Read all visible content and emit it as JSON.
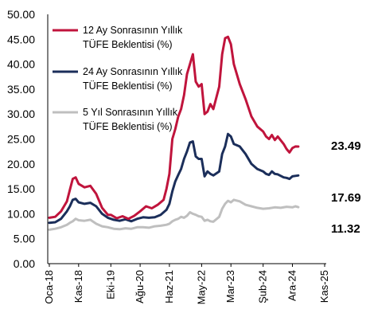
{
  "chart_data": {
    "type": "line",
    "ylim": [
      0,
      50
    ],
    "y_ticks": [
      "0.00",
      "5.00",
      "10.00",
      "15.00",
      "20.00",
      "25.00",
      "30.00",
      "35.00",
      "40.00",
      "45.00",
      "50.00"
    ],
    "x_tick_labels": [
      "Oca-18",
      "Kas-18",
      "Eki-19",
      "Ağu-20",
      "Haz-21",
      "May-22",
      "Mar-23",
      "Şub-24",
      "Ara-24",
      "Kas-25"
    ],
    "x_tick_month_index": [
      0,
      10,
      21,
      31,
      41,
      52,
      62,
      73,
      83,
      94
    ],
    "grid": false,
    "legend_position": "top-left",
    "series": [
      {
        "name": "12 Ay Sonrasının Yıllık TÜFE Beklentisi (%)",
        "color": "#c0143c",
        "end_label": "23.49",
        "points": [
          [
            0,
            9.2
          ],
          [
            2,
            9.4
          ],
          [
            4,
            10.5
          ],
          [
            6,
            12.5
          ],
          [
            7,
            14.8
          ],
          [
            8,
            17.0
          ],
          [
            9,
            17.3
          ],
          [
            10,
            16.0
          ],
          [
            12,
            15.3
          ],
          [
            14,
            15.6
          ],
          [
            16,
            14.0
          ],
          [
            18,
            11.2
          ],
          [
            20,
            9.8
          ],
          [
            21,
            9.8
          ],
          [
            23,
            9.1
          ],
          [
            25,
            9.5
          ],
          [
            27,
            9.0
          ],
          [
            29,
            9.6
          ],
          [
            31,
            10.5
          ],
          [
            33,
            11.5
          ],
          [
            35,
            11.1
          ],
          [
            37,
            11.8
          ],
          [
            39,
            12.8
          ],
          [
            40,
            15.0
          ],
          [
            41,
            18.0
          ],
          [
            42,
            25.0
          ],
          [
            43,
            27.0
          ],
          [
            44,
            29.5
          ],
          [
            45,
            31.0
          ],
          [
            46,
            33.8
          ],
          [
            47,
            38.0
          ],
          [
            48,
            40.0
          ],
          [
            49,
            42.0
          ],
          [
            50,
            36.5
          ],
          [
            51,
            35.5
          ],
          [
            52,
            36.0
          ],
          [
            53,
            30.0
          ],
          [
            54,
            30.5
          ],
          [
            55,
            32.0
          ],
          [
            56,
            31.0
          ],
          [
            58,
            35.5
          ],
          [
            59,
            42.0
          ],
          [
            60,
            45.2
          ],
          [
            61,
            45.5
          ],
          [
            62,
            44.0
          ],
          [
            63,
            40.0
          ],
          [
            65,
            36.0
          ],
          [
            67,
            33.0
          ],
          [
            69,
            29.5
          ],
          [
            71,
            27.5
          ],
          [
            73,
            26.5
          ],
          [
            74,
            25.5
          ],
          [
            75,
            25.0
          ],
          [
            76,
            25.8
          ],
          [
            77,
            24.8
          ],
          [
            78,
            25.5
          ],
          [
            80,
            24.0
          ],
          [
            81,
            23.0
          ],
          [
            82,
            22.3
          ],
          [
            83,
            23.2
          ],
          [
            84,
            23.5
          ],
          [
            85,
            23.49
          ]
        ]
      },
      {
        "name": "24 Ay Sonrasının Yıllık TÜFE Beklentisi (%)",
        "color": "#1b2e5a",
        "end_label": "17.69",
        "points": [
          [
            0,
            8.2
          ],
          [
            2,
            8.3
          ],
          [
            4,
            9.0
          ],
          [
            6,
            10.5
          ],
          [
            7,
            11.5
          ],
          [
            8,
            12.8
          ],
          [
            9,
            13.0
          ],
          [
            10,
            12.3
          ],
          [
            12,
            12.0
          ],
          [
            14,
            12.2
          ],
          [
            16,
            11.5
          ],
          [
            18,
            10.0
          ],
          [
            20,
            9.2
          ],
          [
            22,
            8.8
          ],
          [
            24,
            8.6
          ],
          [
            26,
            8.9
          ],
          [
            28,
            8.5
          ],
          [
            30,
            9.0
          ],
          [
            32,
            9.3
          ],
          [
            34,
            9.2
          ],
          [
            36,
            9.3
          ],
          [
            38,
            9.8
          ],
          [
            40,
            10.8
          ],
          [
            41,
            12.0
          ],
          [
            42,
            14.5
          ],
          [
            43,
            16.5
          ],
          [
            44,
            17.8
          ],
          [
            45,
            19.0
          ],
          [
            46,
            21.0
          ],
          [
            47,
            22.5
          ],
          [
            48,
            24.3
          ],
          [
            49,
            24.5
          ],
          [
            50,
            21.5
          ],
          [
            51,
            21.0
          ],
          [
            52,
            21.0
          ],
          [
            53,
            17.5
          ],
          [
            54,
            18.5
          ],
          [
            55,
            18.0
          ],
          [
            56,
            17.7
          ],
          [
            58,
            18.5
          ],
          [
            59,
            22.0
          ],
          [
            60,
            23.5
          ],
          [
            61,
            26.0
          ],
          [
            62,
            25.5
          ],
          [
            63,
            24.0
          ],
          [
            65,
            23.5
          ],
          [
            67,
            22.0
          ],
          [
            69,
            20.0
          ],
          [
            71,
            19.0
          ],
          [
            73,
            18.5
          ],
          [
            74,
            18.0
          ],
          [
            75,
            17.8
          ],
          [
            76,
            18.5
          ],
          [
            77,
            18.0
          ],
          [
            78,
            17.9
          ],
          [
            80,
            17.3
          ],
          [
            81,
            17.2
          ],
          [
            82,
            17.0
          ],
          [
            83,
            17.5
          ],
          [
            84,
            17.6
          ],
          [
            85,
            17.69
          ]
        ]
      },
      {
        "name": "5 Yıl Sonrasının Yıllık TÜFE Beklentisi (%)",
        "color": "#bfbfbf",
        "end_label": "11.32",
        "points": [
          [
            0,
            6.8
          ],
          [
            2,
            7.0
          ],
          [
            4,
            7.3
          ],
          [
            6,
            7.8
          ],
          [
            7,
            8.2
          ],
          [
            8,
            8.5
          ],
          [
            9,
            9.0
          ],
          [
            10,
            8.7
          ],
          [
            12,
            8.6
          ],
          [
            14,
            8.8
          ],
          [
            16,
            8.0
          ],
          [
            18,
            7.5
          ],
          [
            20,
            7.3
          ],
          [
            22,
            7.0
          ],
          [
            24,
            6.9
          ],
          [
            26,
            7.1
          ],
          [
            28,
            7.0
          ],
          [
            30,
            7.3
          ],
          [
            32,
            7.3
          ],
          [
            34,
            7.2
          ],
          [
            36,
            7.5
          ],
          [
            38,
            7.6
          ],
          [
            40,
            7.8
          ],
          [
            41,
            8.0
          ],
          [
            42,
            8.5
          ],
          [
            43,
            8.8
          ],
          [
            44,
            9.0
          ],
          [
            45,
            9.4
          ],
          [
            46,
            9.2
          ],
          [
            47,
            9.6
          ],
          [
            48,
            10.3
          ],
          [
            49,
            10.0
          ],
          [
            50,
            9.8
          ],
          [
            51,
            9.5
          ],
          [
            52,
            9.4
          ],
          [
            53,
            8.6
          ],
          [
            54,
            8.8
          ],
          [
            55,
            8.5
          ],
          [
            56,
            8.4
          ],
          [
            58,
            9.4
          ],
          [
            59,
            11.0
          ],
          [
            60,
            12.0
          ],
          [
            61,
            12.6
          ],
          [
            62,
            12.3
          ],
          [
            63,
            12.8
          ],
          [
            65,
            12.5
          ],
          [
            67,
            11.8
          ],
          [
            69,
            11.5
          ],
          [
            71,
            11.2
          ],
          [
            73,
            11.0
          ],
          [
            75,
            11.1
          ],
          [
            77,
            11.3
          ],
          [
            79,
            11.2
          ],
          [
            81,
            11.4
          ],
          [
            83,
            11.3
          ],
          [
            84,
            11.5
          ],
          [
            85,
            11.32
          ]
        ]
      }
    ]
  }
}
